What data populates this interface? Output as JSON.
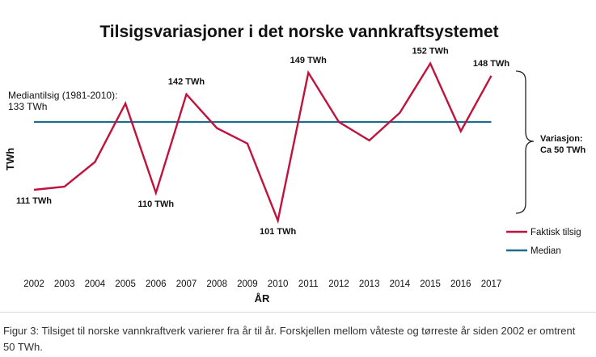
{
  "chart_data": {
    "type": "line",
    "title": "Tilsigsvariasjoner i det norske vannkraftsystemet",
    "xlabel": "ÅR",
    "ylabel": "TWh",
    "categories": [
      "2002",
      "2003",
      "2004",
      "2005",
      "2006",
      "2007",
      "2008",
      "2009",
      "2010",
      "2011",
      "2012",
      "2013",
      "2014",
      "2015",
      "2016",
      "2017"
    ],
    "series": [
      {
        "name": "Faktisk tilsig",
        "color": "#c0123c",
        "values": [
          111,
          112,
          120,
          139,
          110,
          142,
          131,
          126,
          101,
          149,
          133,
          127,
          136,
          152,
          130,
          148
        ]
      },
      {
        "name": "Median",
        "color": "#1f6b8e",
        "values": [
          133,
          133,
          133,
          133,
          133,
          133,
          133,
          133,
          133,
          133,
          133,
          133,
          133,
          133,
          133,
          133
        ]
      }
    ],
    "ylim": [
      95,
      160
    ],
    "grid": false,
    "legend": "bottom-right",
    "annotations": {
      "median_line1": "Mediantilsig (1981-2010):",
      "median_line2": "133 TWh",
      "variation_line1": "Variasjon:",
      "variation_line2": "Ca 50 TWh",
      "points": [
        {
          "index": 0,
          "label": "111 TWh",
          "pos": "below"
        },
        {
          "index": 4,
          "label": "110 TWh",
          "pos": "below"
        },
        {
          "index": 5,
          "label": "142 TWh",
          "pos": "above"
        },
        {
          "index": 8,
          "label": "101 TWh",
          "pos": "below"
        },
        {
          "index": 9,
          "label": "149 TWh",
          "pos": "above"
        },
        {
          "index": 13,
          "label": "152 TWh",
          "pos": "above"
        },
        {
          "index": 15,
          "label": "148 TWh",
          "pos": "above"
        }
      ]
    }
  },
  "caption": "Figur 3: Tilsiget til norske vannkraftverk varierer fra år til år. Forskjellen mellom våteste og tørreste år siden 2002 er omtrent 50 TWh."
}
